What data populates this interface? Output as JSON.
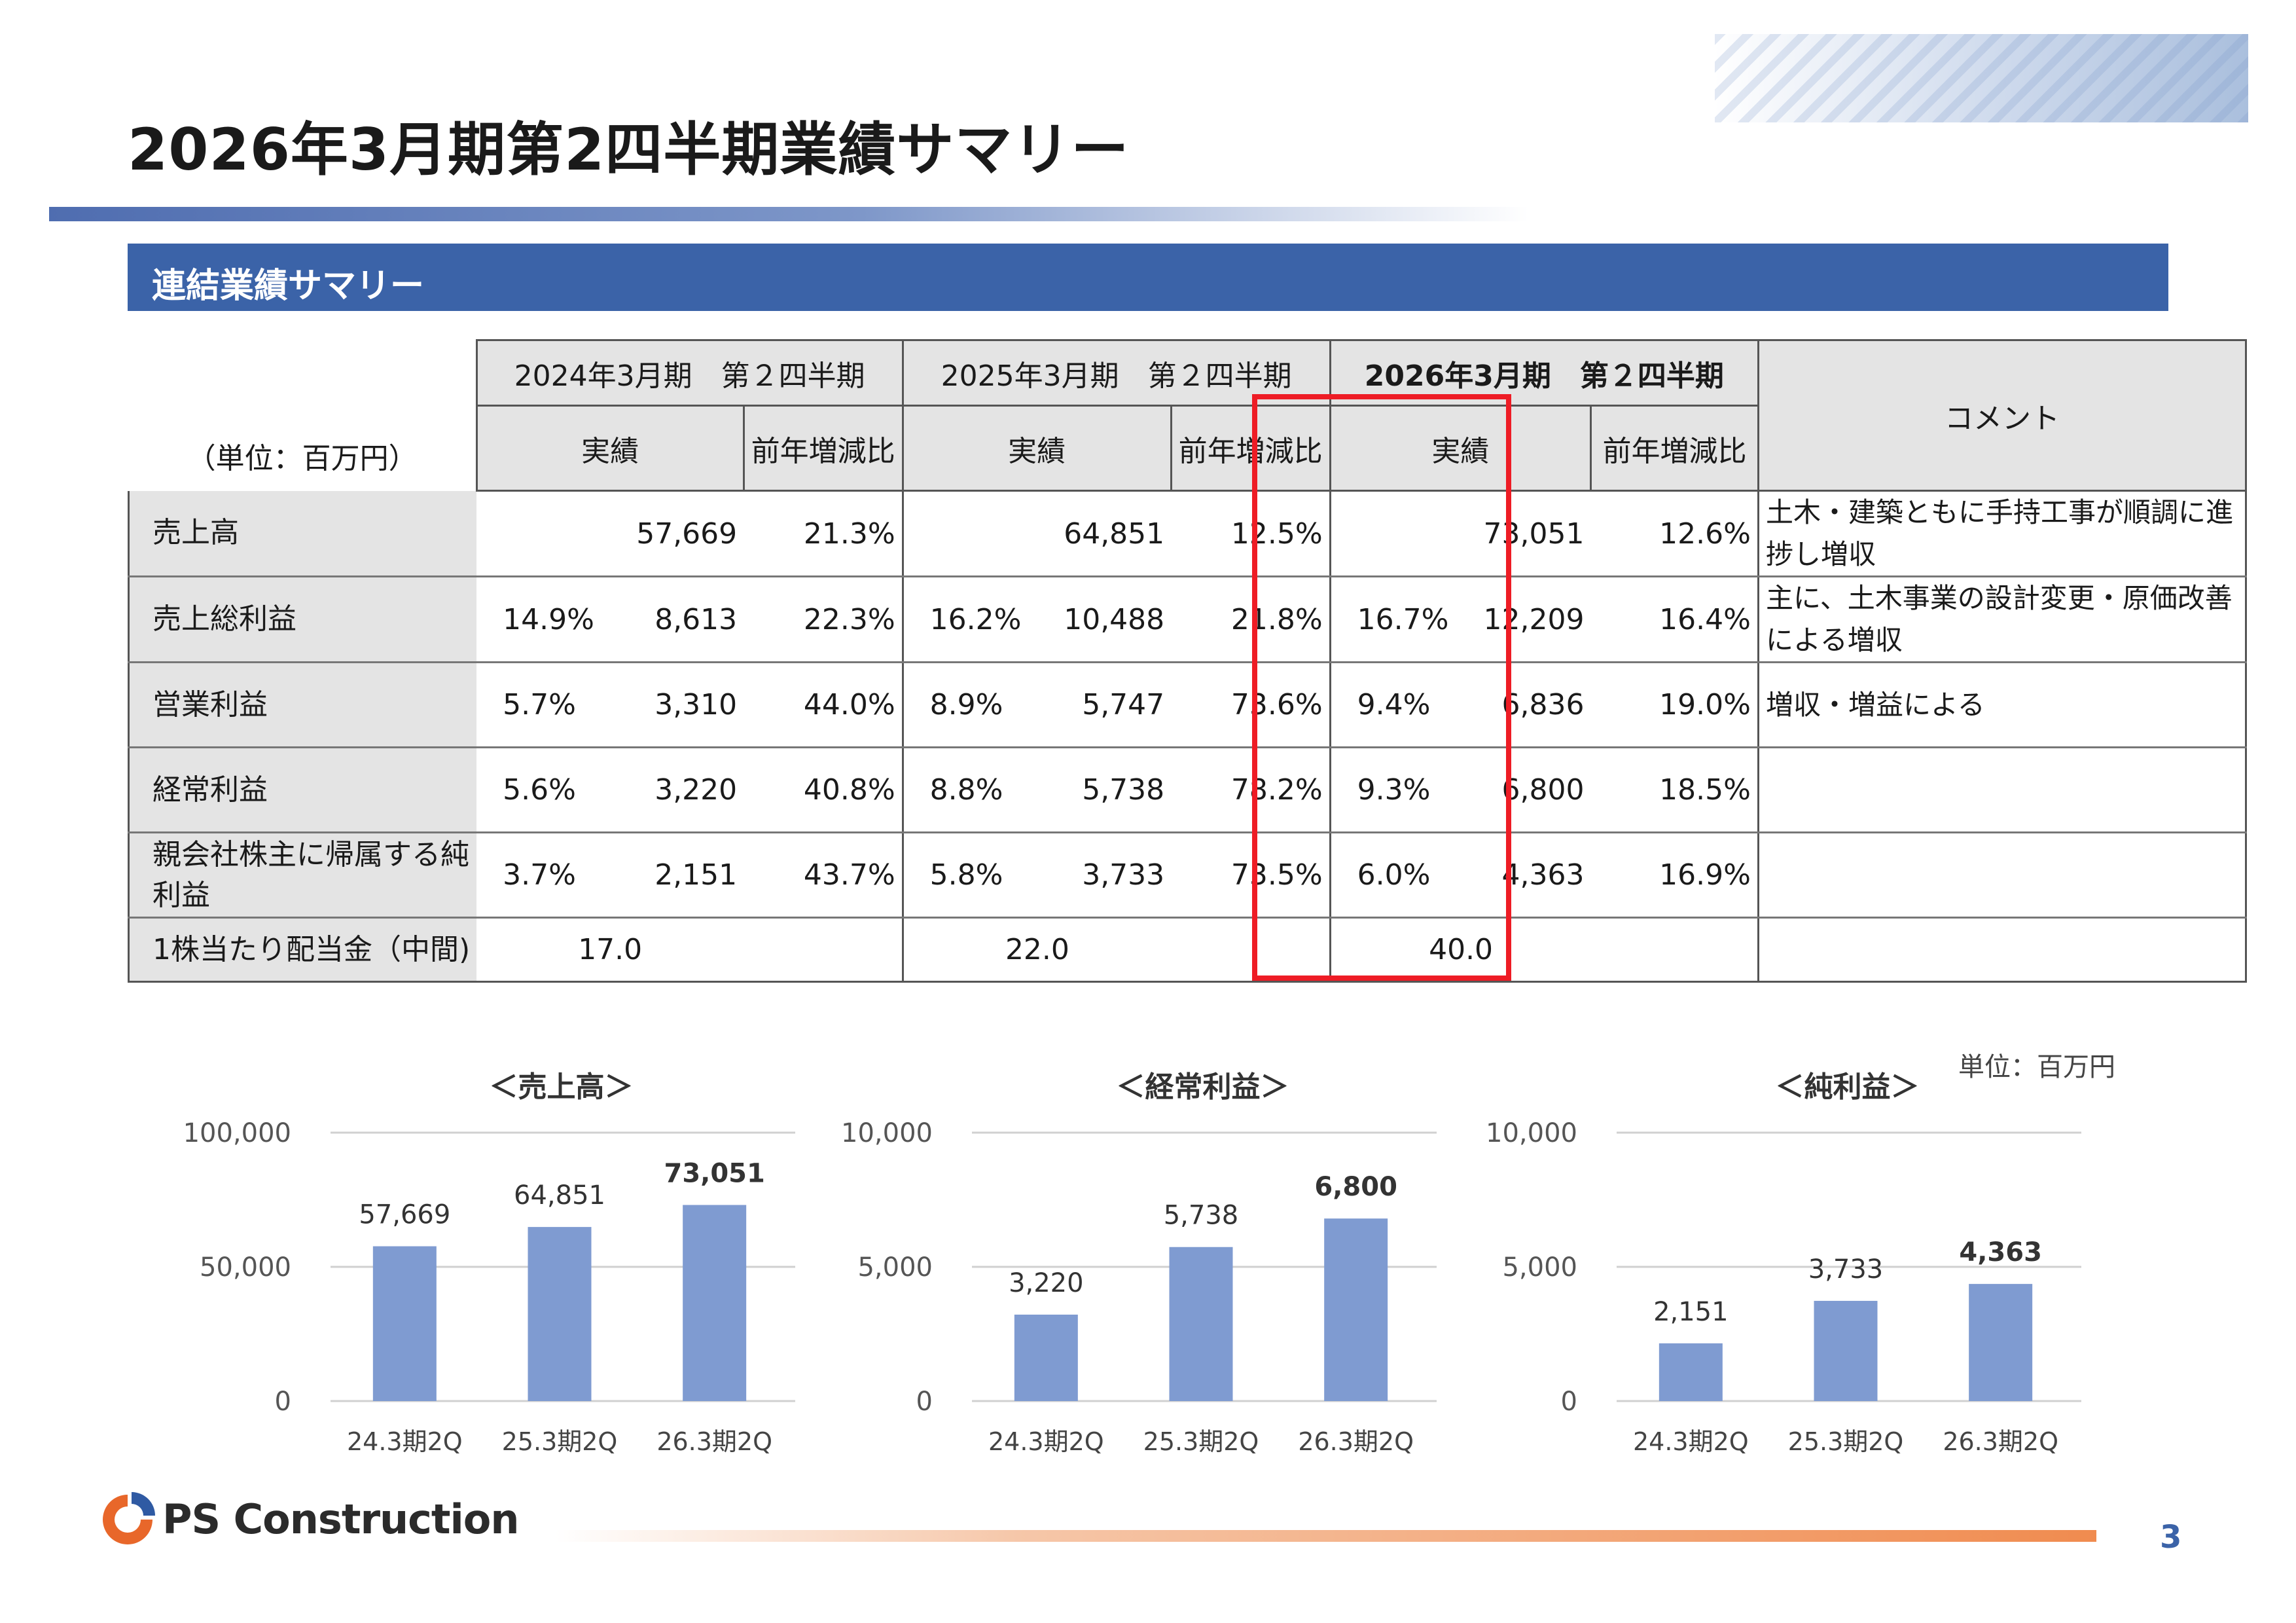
{
  "page": {
    "title": "2026年3月期第2四半期業績サマリー",
    "section": "連結業績サマリー",
    "page_number": "3"
  },
  "table": {
    "unit_label": "（単位：百万円）",
    "periods": [
      "2024年3月期　第２四半期",
      "2025年3月期　第２四半期",
      "2026年3月期　第２四半期"
    ],
    "comment_header": "コメント",
    "sub_actual": "実績",
    "sub_yoy": "前年増減比",
    "rows": [
      {
        "label": "売上高",
        "p1_margin": "",
        "p1_actual": "57,669",
        "p1_yoy": "21.3%",
        "p2_margin": "",
        "p2_actual": "64,851",
        "p2_yoy": "12.5%",
        "p3_margin": "",
        "p3_actual": "73,051",
        "p3_yoy": "12.6%",
        "comment": "土木・建築ともに手持工事が順調に進捗し増収"
      },
      {
        "label": "売上総利益",
        "p1_margin": "14.9%",
        "p1_actual": "8,613",
        "p1_yoy": "22.3%",
        "p2_margin": "16.2%",
        "p2_actual": "10,488",
        "p2_yoy": "21.8%",
        "p3_margin": "16.7%",
        "p3_actual": "12,209",
        "p3_yoy": "16.4%",
        "comment": "主に、土木事業の設計変更・原価改善による増収"
      },
      {
        "label": "営業利益",
        "p1_margin": "5.7%",
        "p1_actual": "3,310",
        "p1_yoy": "44.0%",
        "p2_margin": "8.9%",
        "p2_actual": "5,747",
        "p2_yoy": "73.6%",
        "p3_margin": "9.4%",
        "p3_actual": "6,836",
        "p3_yoy": "19.0%",
        "comment": "増収・増益による"
      },
      {
        "label": "経常利益",
        "p1_margin": "5.6%",
        "p1_actual": "3,220",
        "p1_yoy": "40.8%",
        "p2_margin": "8.8%",
        "p2_actual": "5,738",
        "p2_yoy": "78.2%",
        "p3_margin": "9.3%",
        "p3_actual": "6,800",
        "p3_yoy": "18.5%",
        "comment": ""
      },
      {
        "label": "親会社株主に帰属する純利益",
        "p1_margin": "3.7%",
        "p1_actual": "2,151",
        "p1_yoy": "43.7%",
        "p2_margin": "5.8%",
        "p2_actual": "3,733",
        "p2_yoy": "73.5%",
        "p3_margin": "6.0%",
        "p3_actual": "4,363",
        "p3_yoy": "16.9%",
        "comment": ""
      }
    ],
    "dividend": {
      "label": "1株当たり配当金（中間)",
      "p1": "17.0",
      "p2": "22.0",
      "p3": "40.0"
    }
  },
  "unit_note": "単位：百万円",
  "logo_text": "PS Construction",
  "chart_data": [
    {
      "type": "bar",
      "title": "＜売上高＞",
      "categories": [
        "24.3期2Q",
        "25.3期2Q",
        "26.3期2Q"
      ],
      "values": [
        57669,
        64851,
        73051
      ],
      "labels": [
        "57,669",
        "64,851",
        "73,051"
      ],
      "yticks": [
        "0",
        "50,000",
        "100,000"
      ],
      "ylim": [
        0,
        100000
      ],
      "highlight_last": true,
      "bar_color": "#7f9bd1"
    },
    {
      "type": "bar",
      "title": "＜経常利益＞",
      "categories": [
        "24.3期2Q",
        "25.3期2Q",
        "26.3期2Q"
      ],
      "values": [
        3220,
        5738,
        6800
      ],
      "labels": [
        "3,220",
        "5,738",
        "6,800"
      ],
      "yticks": [
        "0",
        "5,000",
        "10,000"
      ],
      "ylim": [
        0,
        10000
      ],
      "highlight_last": true,
      "bar_color": "#7f9bd1"
    },
    {
      "type": "bar",
      "title": "＜純利益＞",
      "categories": [
        "24.3期2Q",
        "25.3期2Q",
        "26.3期2Q"
      ],
      "values": [
        2151,
        3733,
        4363
      ],
      "labels": [
        "2,151",
        "3,733",
        "4,363"
      ],
      "yticks": [
        "0",
        "5,000",
        "10,000"
      ],
      "ylim": [
        0,
        10000
      ],
      "highlight_last": true,
      "bar_color": "#7f9bd1"
    }
  ]
}
